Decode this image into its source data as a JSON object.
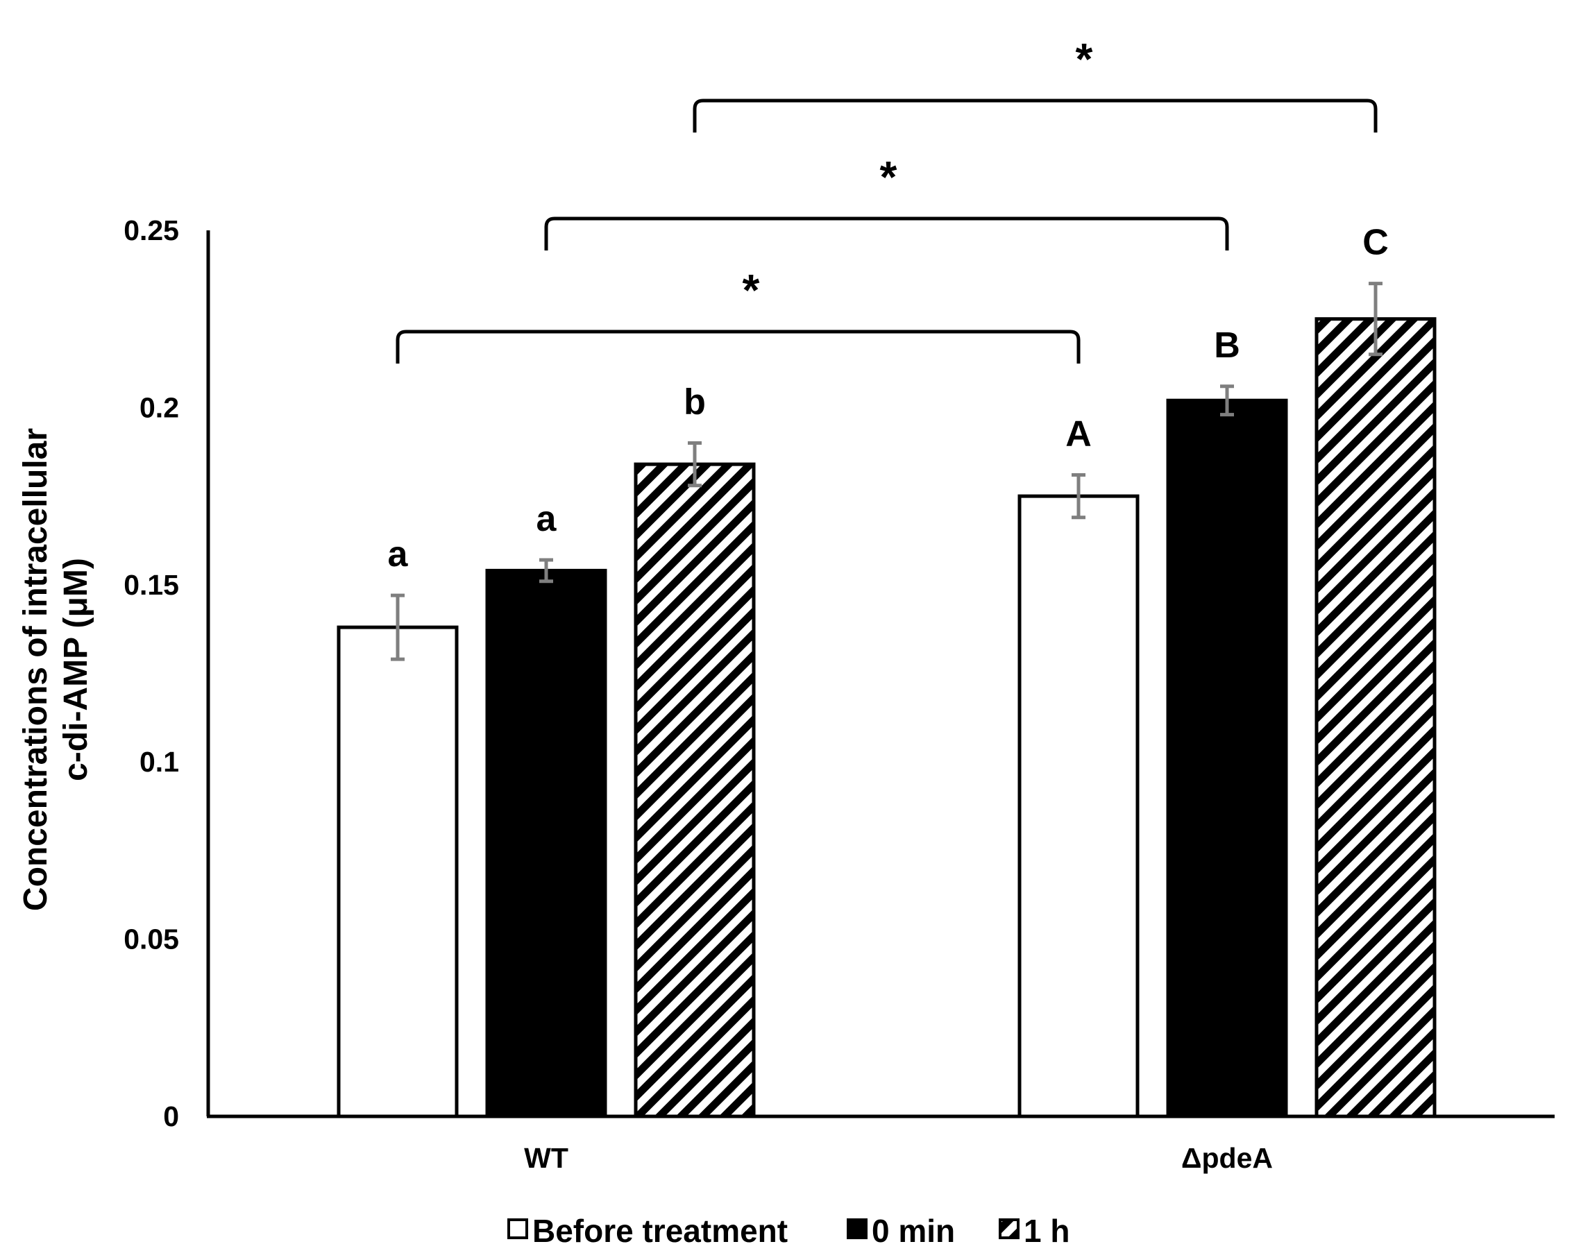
{
  "chart_data": {
    "type": "bar",
    "title": "",
    "xlabel": "",
    "ylabel": [
      "Concentrations of intracellular",
      "c-di-AMP (μM)"
    ],
    "ylim": [
      0,
      0.25
    ],
    "yticks": [
      0,
      0.05,
      0.1,
      0.15,
      0.2,
      0.25
    ],
    "ytick_labels": [
      "0",
      "0.05",
      "0.1",
      "0.15",
      "0.2",
      "0.25"
    ],
    "grid": false,
    "legend_position": "bottom",
    "categories": [
      "WT",
      "ΔpdeA"
    ],
    "series": [
      {
        "name": "Before treatment",
        "fill": "white",
        "values": [
          0.138,
          0.175
        ],
        "errors": [
          0.009,
          0.006
        ],
        "letters": [
          "a",
          "A"
        ]
      },
      {
        "name": "0 min",
        "fill": "black",
        "values": [
          0.154,
          0.202
        ],
        "errors": [
          0.003,
          0.004
        ],
        "letters": [
          "a",
          "B"
        ]
      },
      {
        "name": "1 h",
        "fill": "hatched",
        "values": [
          0.184,
          0.225
        ],
        "errors": [
          0.006,
          0.01
        ],
        "letters": [
          "b",
          "C"
        ]
      }
    ],
    "comparisons": [
      {
        "from": [
          "WT",
          "Before treatment"
        ],
        "to": [
          "ΔpdeA",
          "Before treatment"
        ],
        "label": "*"
      },
      {
        "from": [
          "WT",
          "0 min"
        ],
        "to": [
          "ΔpdeA",
          "0 min"
        ],
        "label": "*"
      },
      {
        "from": [
          "WT",
          "1 h"
        ],
        "to": [
          "ΔpdeA",
          "1 h"
        ],
        "label": "*"
      }
    ]
  },
  "colors": {
    "axis": "#000000",
    "error_bar": "#7f7f7f",
    "bar_outline": "#000000",
    "fill_white": "#ffffff",
    "fill_black": "#000000"
  }
}
